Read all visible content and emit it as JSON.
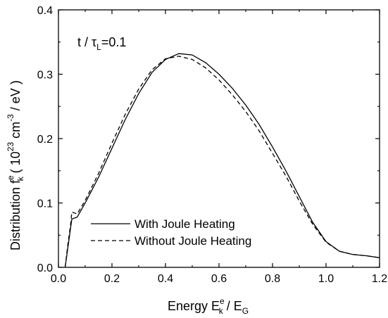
{
  "chart_data": {
    "type": "line",
    "annotation": {
      "prefix": "t / τ",
      "subscript": "L",
      "suffix": "=0.1"
    },
    "xlabel": {
      "prefix": "Energy  E",
      "sup": "e",
      "sub": "k",
      "suffix": " / E",
      "sub2": "G"
    },
    "ylabel": {
      "prefix": "Distribution  f",
      "sup": "e",
      "sub": "k",
      "units_prefix": "   ( 10",
      "units_sup1": "23",
      "units_mid": " cm",
      "units_sup2": "-3",
      "units_suffix": " / eV )"
    },
    "xlim": [
      0.0,
      1.2
    ],
    "ylim": [
      0.0,
      0.4
    ],
    "xticks": [
      "0.0",
      "0.2",
      "0.4",
      "0.6",
      "0.8",
      "1.0",
      "1.2"
    ],
    "yticks": [
      "0.0",
      "0.1",
      "0.2",
      "0.3",
      "0.4"
    ],
    "legend_position": "lower-left",
    "series": [
      {
        "name": "With Joule Heating",
        "style": "solid",
        "x": [
          0.025,
          0.035,
          0.045,
          0.05,
          0.07,
          0.1,
          0.15,
          0.2,
          0.25,
          0.3,
          0.35,
          0.4,
          0.45,
          0.5,
          0.55,
          0.6,
          0.65,
          0.7,
          0.75,
          0.8,
          0.85,
          0.9,
          0.95,
          1.0,
          1.05,
          1.1,
          1.15,
          1.2
        ],
        "y": [
          0.0,
          0.03,
          0.06,
          0.075,
          0.078,
          0.1,
          0.14,
          0.185,
          0.23,
          0.27,
          0.303,
          0.323,
          0.332,
          0.33,
          0.318,
          0.3,
          0.278,
          0.252,
          0.222,
          0.187,
          0.15,
          0.11,
          0.07,
          0.04,
          0.025,
          0.02,
          0.018,
          0.015
        ]
      },
      {
        "name": "Without Joule Heating",
        "style": "dashed",
        "x": [
          0.025,
          0.035,
          0.045,
          0.05,
          0.07,
          0.1,
          0.15,
          0.2,
          0.25,
          0.3,
          0.35,
          0.4,
          0.45,
          0.5,
          0.55,
          0.6,
          0.65,
          0.7,
          0.75,
          0.8,
          0.85,
          0.9,
          0.95,
          1.0,
          1.05,
          1.1,
          1.15,
          1.2
        ],
        "y": [
          0.0,
          0.035,
          0.065,
          0.086,
          0.083,
          0.104,
          0.146,
          0.193,
          0.238,
          0.277,
          0.307,
          0.324,
          0.328,
          0.323,
          0.31,
          0.291,
          0.268,
          0.242,
          0.212,
          0.177,
          0.142,
          0.103,
          0.067,
          0.039,
          0.025,
          0.02,
          0.018,
          0.015
        ]
      }
    ]
  }
}
